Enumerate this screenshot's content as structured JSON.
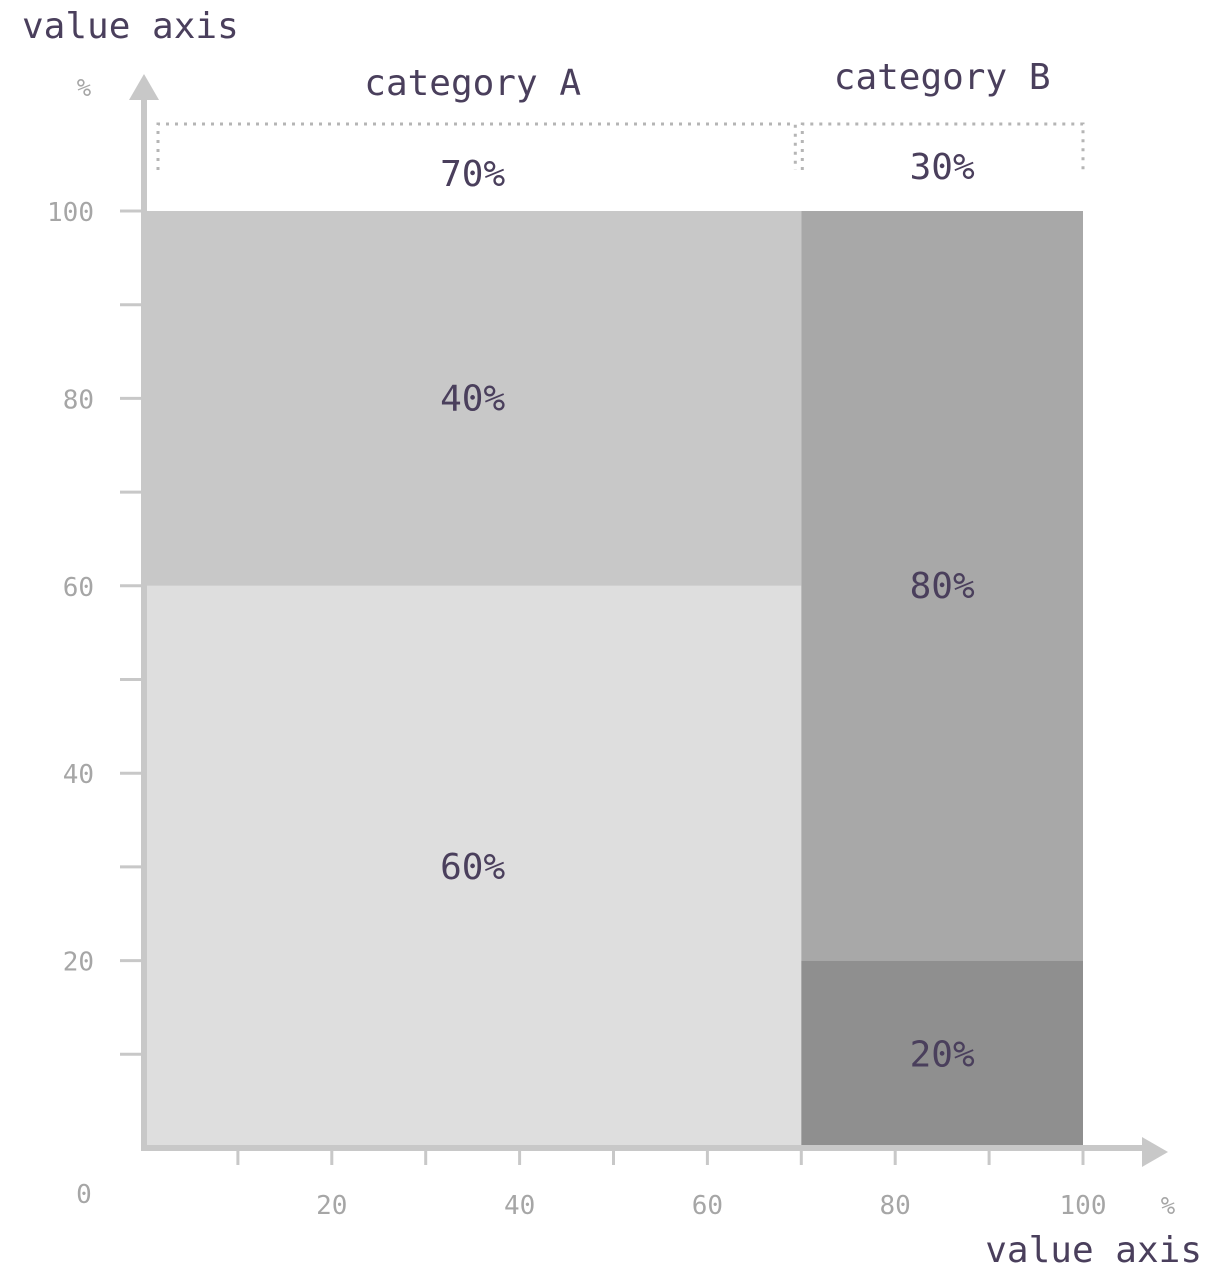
{
  "chart_data": {
    "type": "mekko",
    "y_axis_title": "value axis",
    "x_axis_title": "value axis",
    "y_unit": "%",
    "x_unit": "%",
    "origin_label": "0",
    "xlim": [
      0,
      100
    ],
    "ylim": [
      0,
      100
    ],
    "x_ticks_labeled": [
      20,
      40,
      60,
      80,
      100
    ],
    "x_ticks_minor": [
      10,
      30,
      50,
      70,
      90
    ],
    "y_ticks_labeled": [
      20,
      40,
      60,
      80,
      100
    ],
    "y_ticks_minor": [
      10,
      30,
      50,
      70,
      90
    ],
    "categories": [
      {
        "name": "category A",
        "width": 70,
        "width_label": "70%",
        "segments": [
          {
            "value": 60,
            "label": "60%",
            "color": "#dedede"
          },
          {
            "value": 40,
            "label": "40%",
            "color": "#c8c8c8"
          }
        ]
      },
      {
        "name": "category B",
        "width": 30,
        "width_label": "30%",
        "segments": [
          {
            "value": 20,
            "label": "20%",
            "color": "#8f8f8f"
          },
          {
            "value": 80,
            "label": "80%",
            "color": "#a8a8a8"
          }
        ]
      }
    ]
  }
}
